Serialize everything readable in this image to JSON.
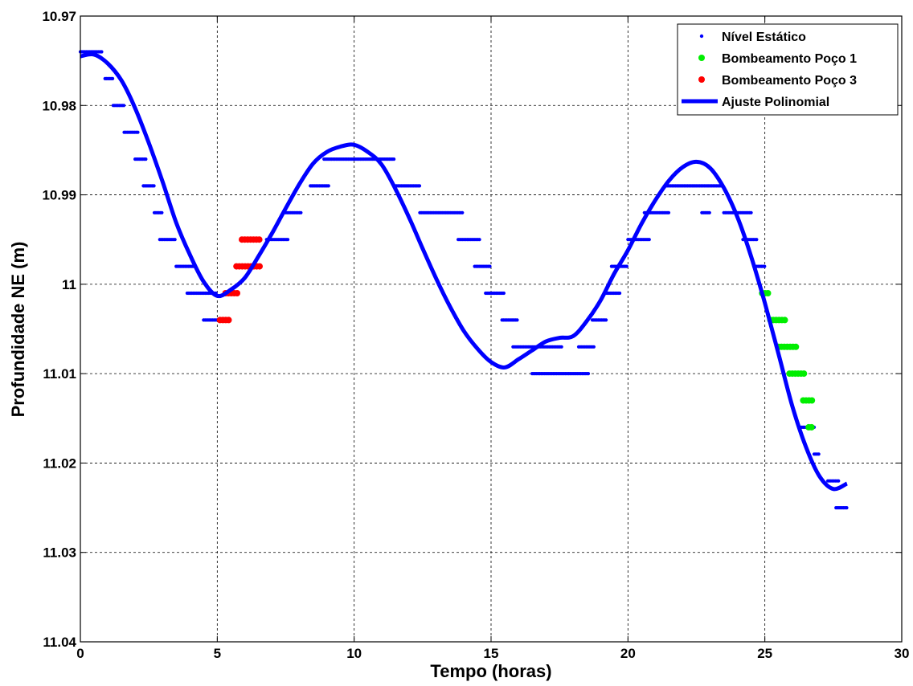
{
  "chart_data": {
    "type": "scatter",
    "title": "",
    "xlabel": "Tempo (horas)",
    "ylabel": "Profundidade NE (m)",
    "xlim": [
      0,
      30
    ],
    "ylim": [
      10.97,
      11.04
    ],
    "y_reversed": true,
    "grid": true,
    "legend_position": "top-right",
    "x_ticks": [
      0,
      5,
      10,
      15,
      20,
      25,
      30
    ],
    "y_ticks": [
      10.97,
      10.98,
      10.99,
      11,
      11.01,
      11.02,
      11.03,
      11.04
    ],
    "x_tick_labels": [
      "0",
      "5",
      "10",
      "15",
      "20",
      "25",
      "30"
    ],
    "y_tick_labels": [
      "10.97",
      "10.98",
      "10.99",
      "11",
      "11.01",
      "11.02",
      "11.03",
      "11.04"
    ],
    "series": [
      {
        "name": "Nível Estático",
        "style": "points",
        "color": "#0000ff",
        "segments": [
          [
            0.0,
            0.8,
            10.974
          ],
          [
            0.9,
            1.2,
            10.977
          ],
          [
            1.2,
            1.6,
            10.98
          ],
          [
            1.6,
            2.1,
            10.983
          ],
          [
            2.0,
            2.4,
            10.986
          ],
          [
            2.3,
            2.7,
            10.989
          ],
          [
            2.7,
            3.0,
            10.992
          ],
          [
            2.9,
            3.5,
            10.995
          ],
          [
            3.5,
            4.2,
            10.998
          ],
          [
            3.9,
            5.0,
            11.001
          ],
          [
            4.5,
            5.4,
            11.004
          ],
          [
            6.8,
            7.6,
            10.995
          ],
          [
            7.5,
            8.1,
            10.992
          ],
          [
            8.4,
            9.1,
            10.989
          ],
          [
            8.9,
            11.5,
            10.986
          ],
          [
            11.5,
            12.4,
            10.989
          ],
          [
            12.4,
            14.0,
            10.992
          ],
          [
            13.8,
            14.6,
            10.995
          ],
          [
            14.4,
            15.0,
            10.998
          ],
          [
            14.8,
            15.5,
            11.001
          ],
          [
            15.4,
            16.0,
            11.004
          ],
          [
            15.8,
            17.6,
            11.007
          ],
          [
            16.5,
            18.6,
            11.01
          ],
          [
            18.2,
            18.8,
            11.007
          ],
          [
            18.7,
            19.2,
            11.004
          ],
          [
            19.2,
            19.7,
            11.001
          ],
          [
            19.4,
            20.0,
            10.998
          ],
          [
            20.0,
            20.8,
            10.995
          ],
          [
            20.6,
            21.5,
            10.992
          ],
          [
            21.4,
            23.5,
            10.989
          ],
          [
            22.7,
            23.0,
            10.992
          ],
          [
            23.5,
            24.5,
            10.992
          ],
          [
            24.2,
            24.7,
            10.995
          ],
          [
            24.6,
            25.0,
            10.998
          ],
          [
            26.3,
            26.8,
            11.016
          ],
          [
            26.8,
            27.0,
            11.019
          ],
          [
            27.3,
            27.7,
            11.022
          ],
          [
            27.6,
            28.0,
            11.025
          ]
        ]
      },
      {
        "name": "Bombeamento Poço 1",
        "style": "points",
        "color": "#00ee00",
        "segments": [
          [
            24.9,
            25.2,
            11.001
          ],
          [
            25.2,
            25.8,
            11.004
          ],
          [
            25.5,
            26.2,
            11.007
          ],
          [
            25.9,
            26.5,
            11.01
          ],
          [
            26.4,
            26.8,
            11.013
          ],
          [
            26.6,
            26.8,
            11.016
          ]
        ]
      },
      {
        "name": "Bombeamento Poço 3",
        "style": "points",
        "color": "#ff0000",
        "segments": [
          [
            5.1,
            5.5,
            11.004
          ],
          [
            5.3,
            5.8,
            11.001
          ],
          [
            5.7,
            6.6,
            10.998
          ],
          [
            5.9,
            6.6,
            10.995
          ]
        ]
      },
      {
        "name": "Ajuste Polinomial",
        "style": "line",
        "color": "#0000ff",
        "x": [
          0,
          0.5,
          1,
          1.5,
          2,
          2.5,
          3,
          3.5,
          4,
          4.5,
          5,
          5.5,
          6,
          6.5,
          7,
          7.5,
          8,
          8.5,
          9,
          9.5,
          10,
          10.5,
          11,
          11.5,
          12,
          12.5,
          13,
          13.5,
          14,
          14.5,
          15,
          15.5,
          16,
          16.5,
          17,
          17.5,
          18,
          18.5,
          19,
          19.5,
          20,
          20.5,
          21,
          21.5,
          22,
          22.5,
          23,
          23.5,
          24,
          24.5,
          25,
          25.5,
          26,
          26.5,
          27,
          27.5,
          28
        ],
        "y": [
          10.9745,
          10.9743,
          10.9753,
          10.9772,
          10.9803,
          10.9842,
          10.9885,
          10.9931,
          10.9967,
          10.9997,
          11.0013,
          11.0006,
          10.9993,
          10.9969,
          10.9943,
          10.9915,
          10.9888,
          10.9865,
          10.9852,
          10.9846,
          10.9844,
          10.9852,
          10.9866,
          10.9893,
          10.9925,
          10.996,
          10.9994,
          11.0025,
          11.0052,
          11.0072,
          11.0087,
          11.0093,
          11.0084,
          11.0074,
          11.0064,
          11.006,
          11.0058,
          11.0041,
          11.0018,
          10.9988,
          10.9962,
          10.9932,
          10.9906,
          10.9884,
          10.9869,
          10.9863,
          10.987,
          10.9892,
          10.9925,
          10.9969,
          11.0021,
          11.0078,
          11.0136,
          11.0182,
          11.0215,
          11.0229,
          11.0223
        ]
      }
    ]
  }
}
